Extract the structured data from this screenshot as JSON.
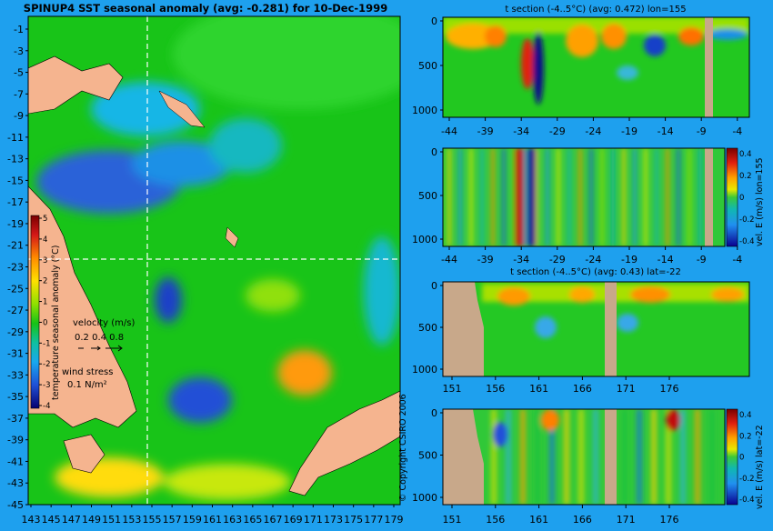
{
  "chart_data": [
    {
      "type": "heatmap",
      "title": "SPINUP4 SST seasonal anomaly (avg: -0.281) for 10-Dec-1999",
      "x_ticks": [
        "143",
        "145",
        "147",
        "149",
        "151",
        "153",
        "155",
        "157",
        "159",
        "161",
        "163",
        "165",
        "167",
        "169",
        "171",
        "173",
        "175",
        "177",
        "179"
      ],
      "y_ticks": [
        "-1",
        "-3",
        "-5",
        "-7",
        "-9",
        "-11",
        "-13",
        "-15",
        "-17",
        "-19",
        "-21",
        "-23",
        "-25",
        "-27",
        "-29",
        "-31",
        "-33",
        "-35",
        "-37",
        "-39",
        "-41",
        "-43",
        "-45"
      ],
      "crosshair": {
        "lon": 155,
        "lat": -22
      },
      "colorbar": {
        "label": "temperature seasonal anomaly (°C)",
        "ticks": [
          "5",
          "4",
          "3",
          "2",
          "1",
          "0",
          "-1",
          "-2",
          "-3",
          "-4"
        ],
        "range": [
          -4,
          5
        ]
      },
      "legend": {
        "velocity_label": "velocity (m/s)",
        "velocity_scale": "0.2 0.4 0.8",
        "wind_label": "wind stress",
        "wind_scale": "0.1 N/m²"
      },
      "land_color": "#f5b48f"
    },
    {
      "type": "heatmap",
      "title": "t section (-4..5°C) (avg: 0.472) lon=155",
      "x_ticks": [
        "-44",
        "-39",
        "-34",
        "-29",
        "-24",
        "-19",
        "-14",
        "-9",
        "-4"
      ],
      "y_ticks": [
        "0",
        "500",
        "1000"
      ]
    },
    {
      "type": "heatmap",
      "title": "",
      "x_ticks": [
        "-44",
        "-39",
        "-34",
        "-29",
        "-24",
        "-19",
        "-14",
        "-9",
        "-4"
      ],
      "y_ticks": [
        "0",
        "500",
        "1000"
      ],
      "colorbar": {
        "label": "vel. E (m/s) lon=155",
        "ticks": [
          "0.4",
          "0.2",
          "0",
          "-0.2",
          "-0.4"
        ]
      }
    },
    {
      "type": "heatmap",
      "title": "t section (-4..5°C) (avg: 0.43) lat=-22",
      "x_ticks": [
        "151",
        "156",
        "161",
        "166",
        "171",
        "176"
      ],
      "y_ticks": [
        "0",
        "500",
        "1000"
      ]
    },
    {
      "type": "heatmap",
      "title": "",
      "x_ticks": [
        "151",
        "156",
        "161",
        "166",
        "171",
        "176"
      ],
      "y_ticks": [
        "0",
        "500",
        "1000"
      ],
      "colorbar": {
        "label": "vel. E (m/s) lat=-22",
        "ticks": [
          "0.4",
          "0.2",
          "0",
          "-0.2",
          "-0.4"
        ]
      }
    }
  ],
  "copyright": "© Copyright CSIRO 2006"
}
